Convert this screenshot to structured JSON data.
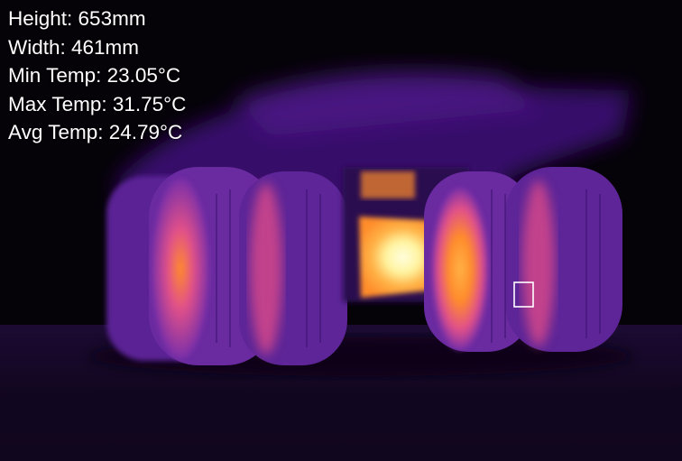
{
  "readout": {
    "height": "Height: 653mm",
    "width": "Width: 461mm",
    "min_temp": "Min Temp: 23.05°C",
    "max_temp": "Max Temp: 31.75°C",
    "avg_temp": "Avg Temp: 24.79°C"
  },
  "palette": {
    "background": "#050208",
    "cool": "#3a1270",
    "mid": "#7a2fa8",
    "warm": "#e0508a",
    "hot": "#ff8c2a",
    "hottest": "#fff4a0",
    "marker": "#ffffff"
  }
}
